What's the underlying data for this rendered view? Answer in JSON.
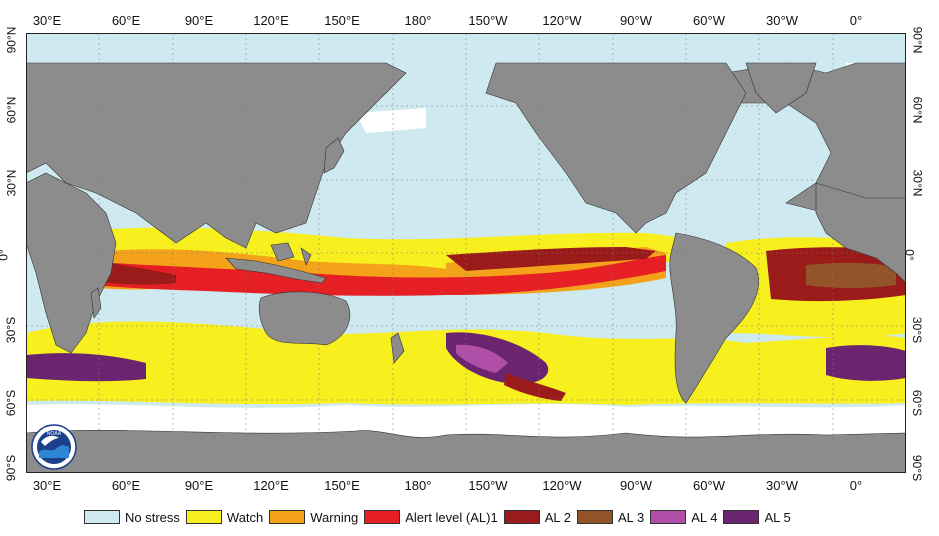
{
  "colors": {
    "ocean": "#cfe9f0",
    "land": "#8c8c8c",
    "ice": "#ffffff",
    "grid": "#7a7a7a"
  },
  "longitude_labels": [
    "30°E",
    "60°E",
    "90°E",
    "120°E",
    "150°E",
    "180°",
    "150°W",
    "120°W",
    "90°W",
    "60°W",
    "30°W",
    "0°"
  ],
  "latitude_labels": [
    "90°N",
    "60°N",
    "30°N",
    "0°",
    "30°S",
    "60°S",
    "90°S"
  ],
  "legend": {
    "items": [
      {
        "label": "No stress",
        "color": "#cfe9f0"
      },
      {
        "label": "Watch",
        "color": "#f7ef1e"
      },
      {
        "label": "Warning",
        "color": "#f5a21b"
      },
      {
        "label": "Alert level (AL)1",
        "color": "#e51f23"
      },
      {
        "label": "AL 2",
        "color": "#9b1b1b"
      },
      {
        "label": "AL 3",
        "color": "#94542a"
      },
      {
        "label": "AL 4",
        "color": "#b04fa8"
      },
      {
        "label": "AL 5",
        "color": "#6b2470"
      }
    ]
  },
  "logo": {
    "icon": "noaa-logo-icon",
    "text": "NOAA"
  }
}
